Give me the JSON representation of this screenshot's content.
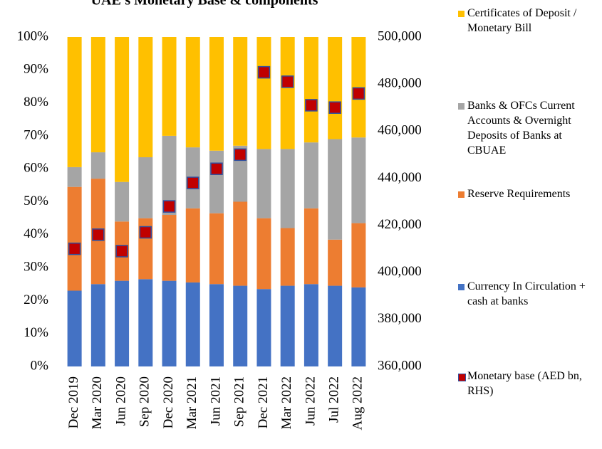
{
  "chart_data": {
    "type": "bar",
    "stacked": true,
    "title": "UAE's Monetary Base & components",
    "categories": [
      "Dec 2019",
      "Mar 2020",
      "Jun 2020",
      "Sep 2020",
      "Dec 2020",
      "Mar 2021",
      "Jun 2021",
      "Sep 2021",
      "Dec 2021",
      "Mar 2022",
      "Jun 2022",
      "Jul 2022",
      "Aug 2022"
    ],
    "series": [
      {
        "name": "Currency In Circulation + cash at banks",
        "color": "#4472c4",
        "values": [
          23,
          25,
          26,
          26.5,
          26,
          25.5,
          25,
          24.5,
          23.5,
          24.5,
          25,
          24.5,
          24
        ]
      },
      {
        "name": "Reserve Requirements",
        "color": "#ed7d31",
        "values": [
          31.5,
          32,
          18,
          18.5,
          20,
          22.5,
          21.5,
          25.5,
          21.5,
          17.5,
          23,
          14,
          19.5
        ]
      },
      {
        "name": "Banks & OFCs Current Accounts & Overnight Deposits of Banks at CBUAE",
        "color": "#a5a5a5",
        "values": [
          6,
          8,
          12,
          18.5,
          24,
          18.5,
          19,
          17,
          21,
          24,
          20,
          30.5,
          26
        ]
      },
      {
        "name": "Certificates of Deposit / Monetary Bill",
        "color": "#ffc000",
        "values": [
          39.5,
          35,
          44,
          36.5,
          30,
          33.5,
          34.5,
          33,
          34,
          34,
          32,
          31,
          30.5
        ]
      },
      {
        "name": "Monetary base (AED bn, RHS)",
        "color": "#c00000",
        "axis": "y2",
        "mode": "markers",
        "values": [
          410000,
          416000,
          409000,
          417000,
          428000,
          438000,
          444000,
          450000,
          485000,
          481000,
          471000,
          470000,
          476000
        ]
      }
    ],
    "ylim": [
      0,
      100
    ],
    "yticks": [
      {
        "value": 0,
        "label": "0%"
      },
      {
        "value": 10,
        "label": "10%"
      },
      {
        "value": 20,
        "label": "20%"
      },
      {
        "value": 30,
        "label": "30%"
      },
      {
        "value": 40,
        "label": "40%"
      },
      {
        "value": 50,
        "label": "50%"
      },
      {
        "value": 60,
        "label": "60%"
      },
      {
        "value": 70,
        "label": "70%"
      },
      {
        "value": 80,
        "label": "80%"
      },
      {
        "value": 90,
        "label": "90%"
      },
      {
        "value": 100,
        "label": "100%"
      }
    ],
    "y2lim": [
      360000,
      500000
    ],
    "y2ticks": [
      {
        "value": 360000,
        "label": "360,000"
      },
      {
        "value": 380000,
        "label": "380,000"
      },
      {
        "value": 400000,
        "label": "400,000"
      },
      {
        "value": 420000,
        "label": "420,000"
      },
      {
        "value": 440000,
        "label": "440,000"
      },
      {
        "value": 460000,
        "label": "460,000"
      },
      {
        "value": 480000,
        "label": "480,000"
      },
      {
        "value": 500000,
        "label": "500,000"
      }
    ],
    "legend": "right",
    "grid": false
  }
}
